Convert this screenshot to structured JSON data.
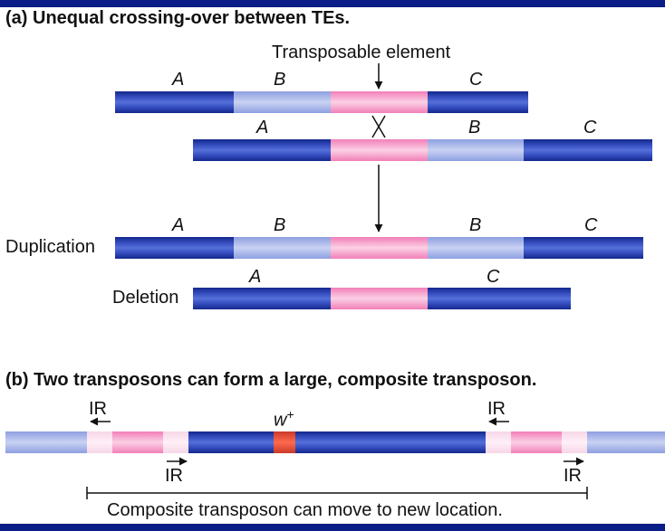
{
  "panel_a": {
    "heading": "(a)  Unequal crossing-over between TEs.",
    "te_label": "Transposable element",
    "genes": {
      "a": "A",
      "b": "B",
      "c": "C"
    },
    "duplication_label": "Duplication",
    "deletion_label": "Deletion"
  },
  "panel_b": {
    "heading": "(b)  Two transposons can form a large, composite transposon.",
    "ir_label": "IR",
    "w_label": "w",
    "w_sup": "+",
    "caption": "Composite transposon can move to new location."
  },
  "colors": {
    "background": "#0b1d86",
    "chromosome_dark": "#13288c",
    "chromosome_light": "#8e9fe0",
    "transposable_element": "#f27fb8",
    "inverted_repeat": "#f6d6e7",
    "w_gene": "#e04a30"
  }
}
